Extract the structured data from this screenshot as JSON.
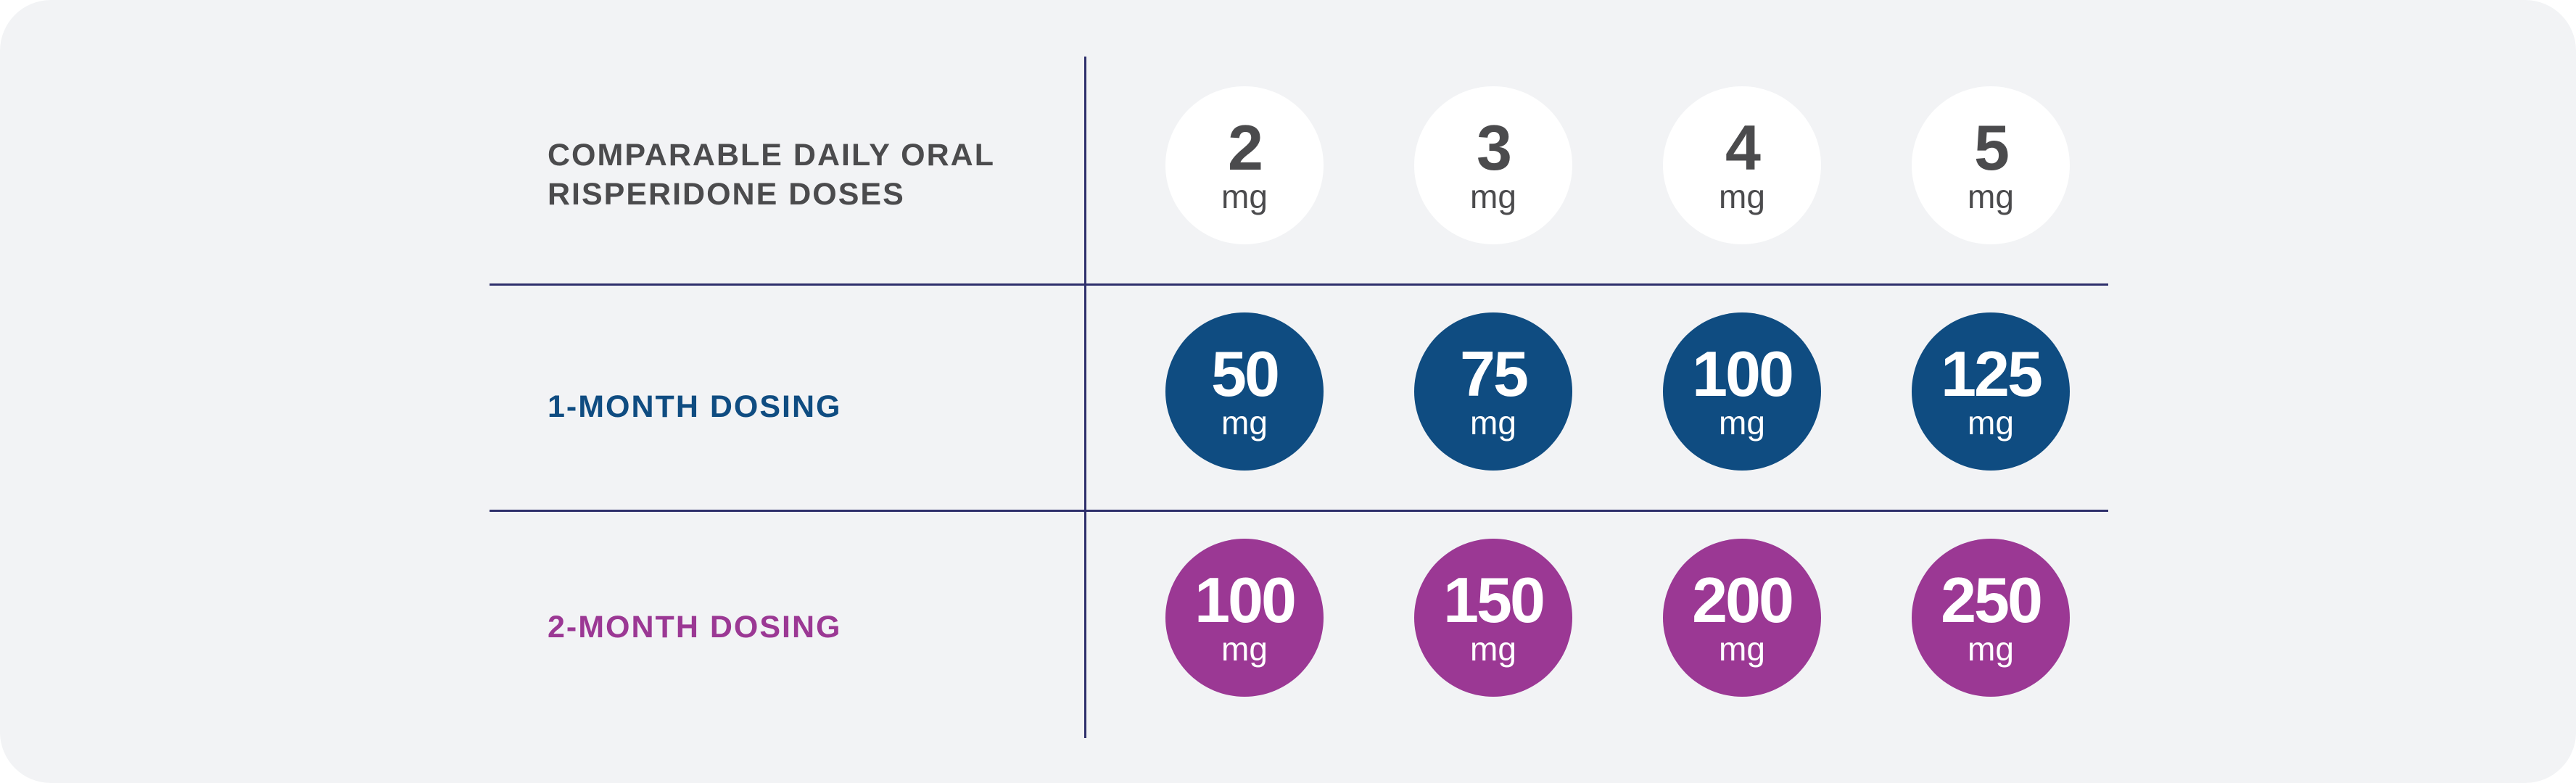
{
  "rows": {
    "oral": {
      "label_line1": "COMPARABLE DAILY ORAL",
      "label_line2": "RISPERIDONE DOSES",
      "doses": [
        {
          "value": "2",
          "unit": "mg"
        },
        {
          "value": "3",
          "unit": "mg"
        },
        {
          "value": "4",
          "unit": "mg"
        },
        {
          "value": "5",
          "unit": "mg"
        }
      ]
    },
    "one_month": {
      "label": "1-MONTH DOSING",
      "doses": [
        {
          "value": "50",
          "unit": "mg"
        },
        {
          "value": "75",
          "unit": "mg"
        },
        {
          "value": "100",
          "unit": "mg"
        },
        {
          "value": "125",
          "unit": "mg"
        }
      ]
    },
    "two_month": {
      "label": "2-MONTH DOSING",
      "doses": [
        {
          "value": "100",
          "unit": "mg"
        },
        {
          "value": "150",
          "unit": "mg"
        },
        {
          "value": "200",
          "unit": "mg"
        },
        {
          "value": "250",
          "unit": "mg"
        }
      ]
    }
  },
  "colors": {
    "background": "#f2f3f5",
    "oral_circle": "#ffffff",
    "oral_text": "#4b4b4d",
    "one_month": "#0f4c81",
    "two_month": "#9b3894",
    "divider": "#2e2f6b"
  }
}
